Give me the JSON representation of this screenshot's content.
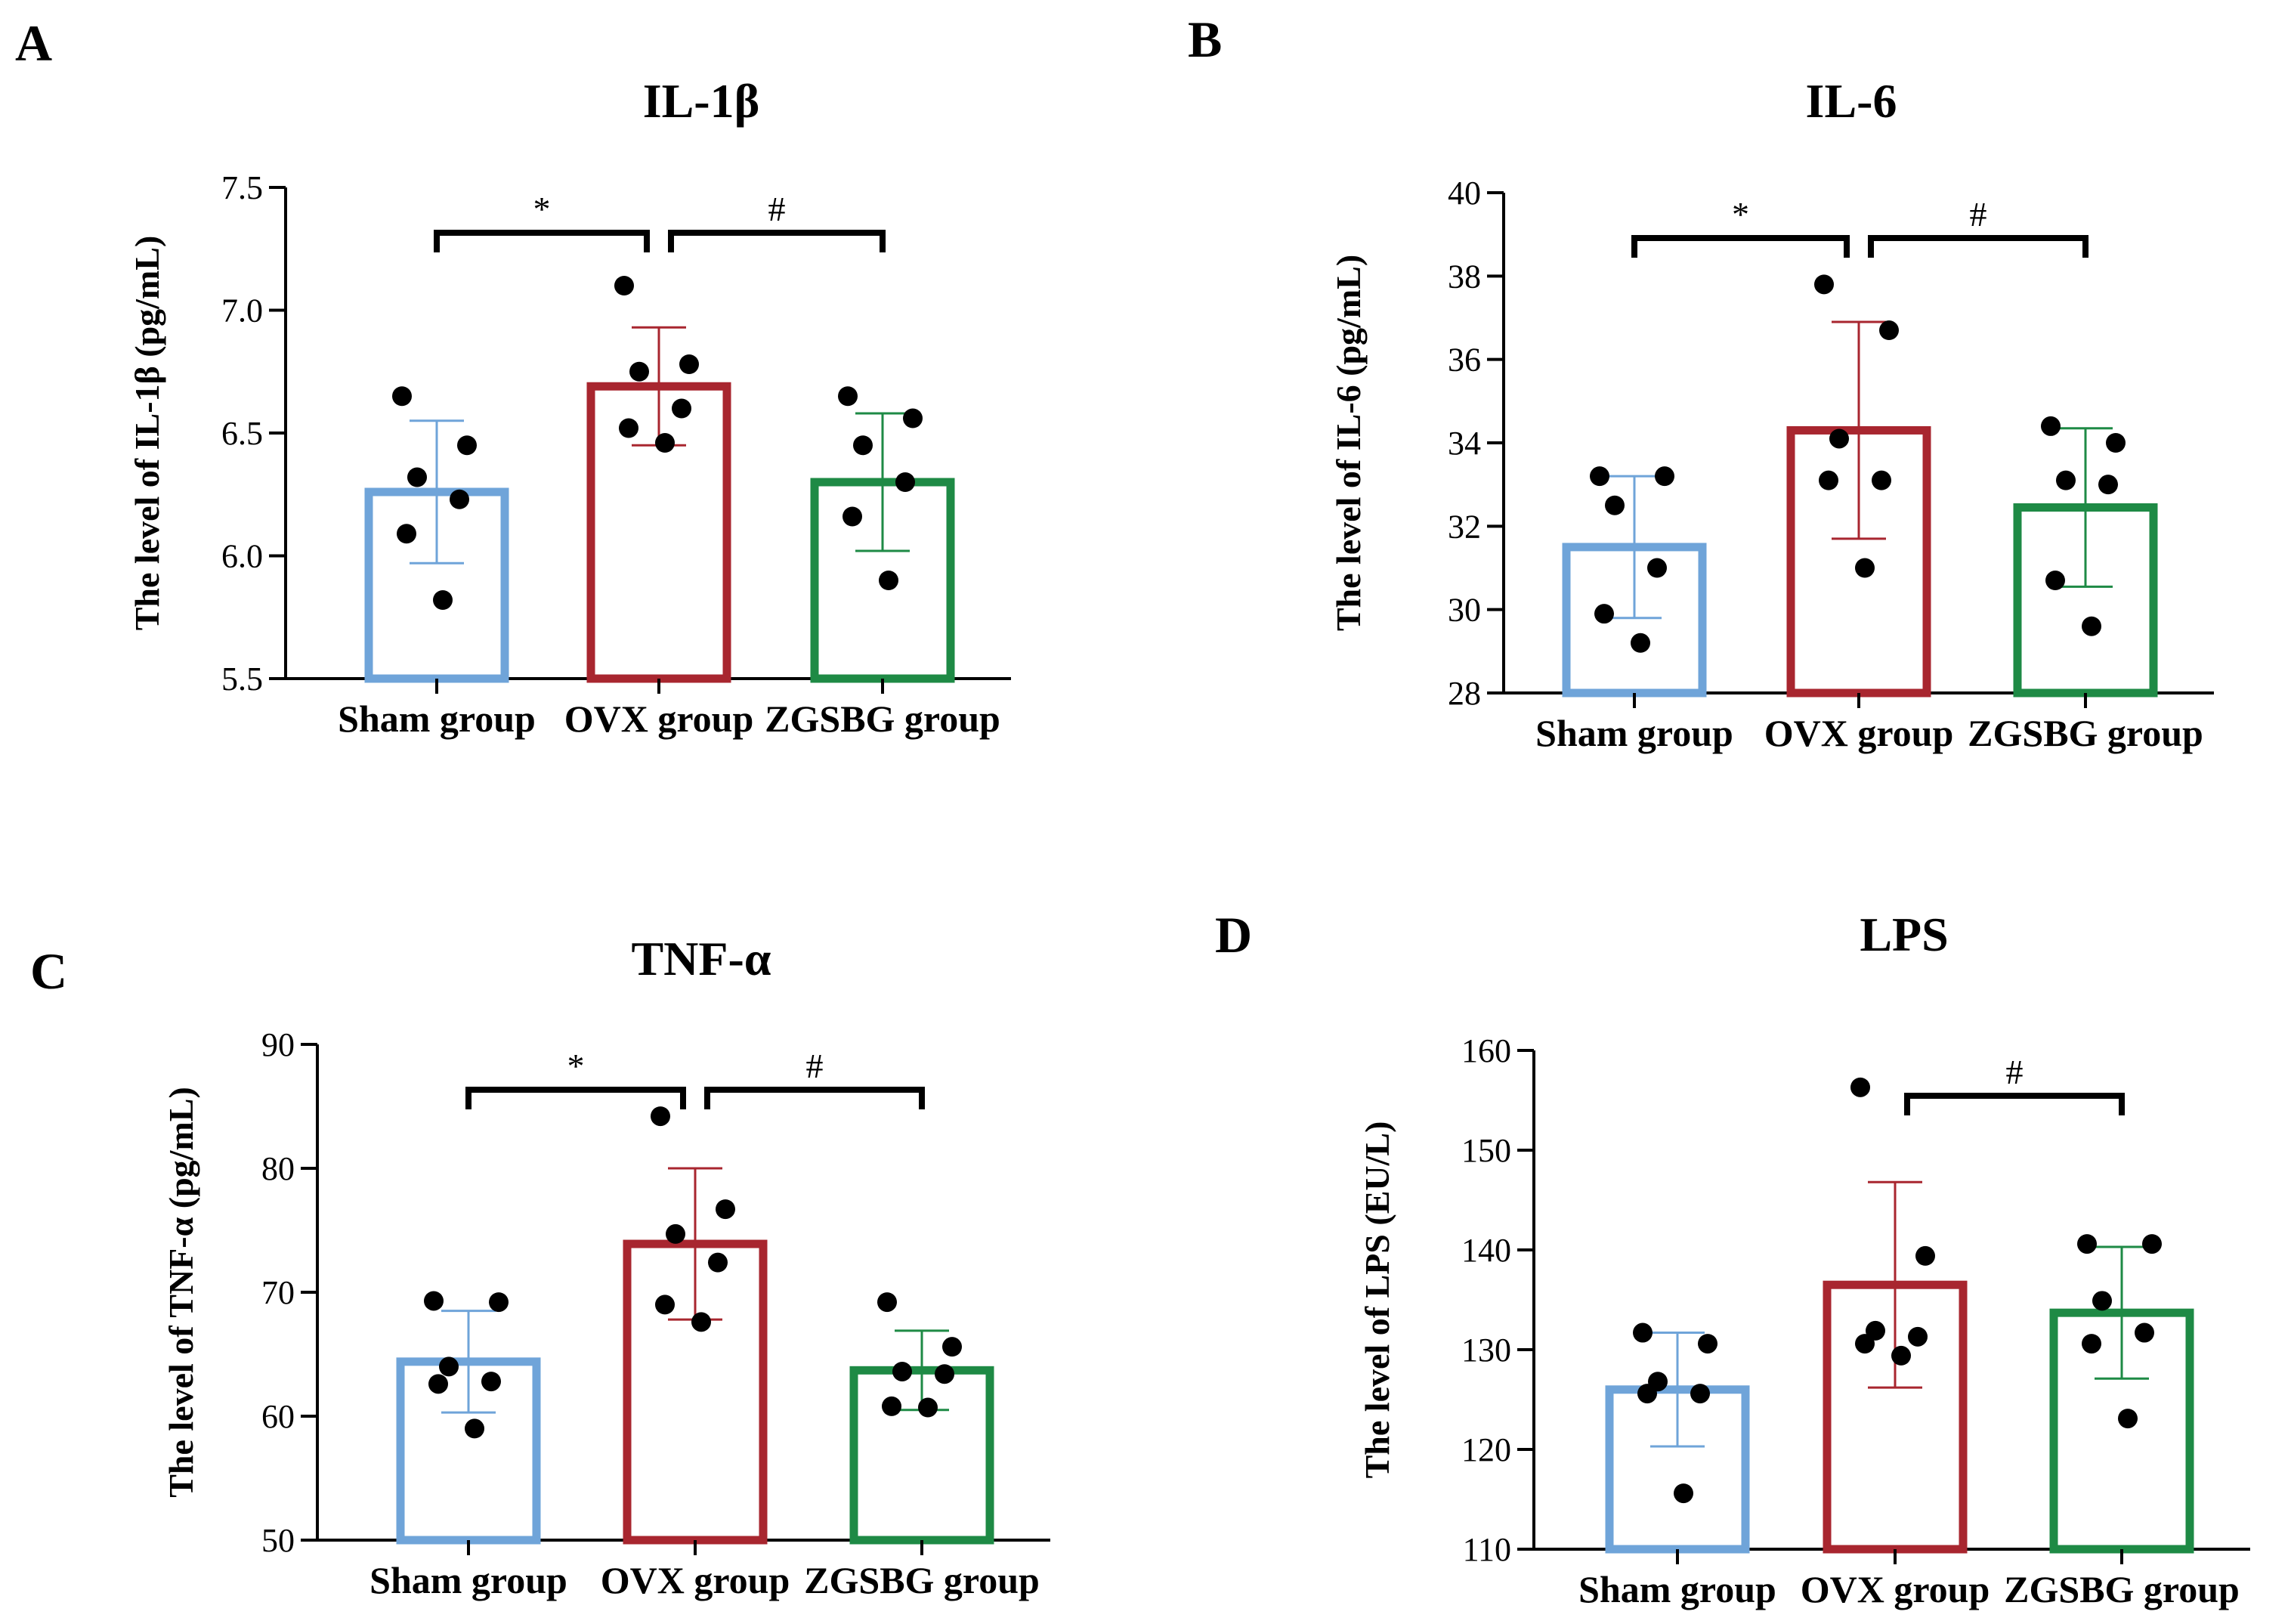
{
  "figure_colors": {
    "sham": "#6FA4D9",
    "ovx": "#A8262F",
    "zgsbg": "#1E8A45",
    "axis": "#000000"
  },
  "chart_data": [
    {
      "panel": "A",
      "type": "bar",
      "title": "IL-1β",
      "ylabel": "The level of IL-1β (pg/mL)",
      "xlabel": "",
      "ylim": [
        5.5,
        7.5
      ],
      "yticks": [
        "5.5",
        "6.0",
        "6.5",
        "7.0",
        "7.5"
      ],
      "categories": [
        "Sham group",
        "OVX group",
        "ZGSBG group"
      ],
      "series": [
        {
          "name": "Sham group",
          "mean": 6.26,
          "sd": 0.29,
          "points": [
            6.65,
            6.45,
            6.32,
            6.23,
            6.09,
            5.82
          ]
        },
        {
          "name": "OVX group",
          "mean": 6.69,
          "sd": 0.24,
          "points": [
            7.1,
            6.78,
            6.75,
            6.6,
            6.52,
            6.46
          ]
        },
        {
          "name": "ZGSBG group",
          "mean": 6.3,
          "sd": 0.28,
          "points": [
            6.65,
            6.56,
            6.45,
            6.3,
            6.16,
            5.9
          ]
        }
      ],
      "significance": [
        {
          "from": 0,
          "to": 1,
          "label": "*"
        },
        {
          "from": 1,
          "to": 2,
          "label": "#"
        }
      ]
    },
    {
      "panel": "B",
      "type": "bar",
      "title": "IL-6",
      "ylabel": "The level of IL-6 (pg/mL)",
      "xlabel": "",
      "ylim": [
        28,
        40
      ],
      "yticks": [
        "28",
        "30",
        "32",
        "34",
        "36",
        "38",
        "40"
      ],
      "categories": [
        "Sham group",
        "OVX group",
        "ZGSBG group"
      ],
      "series": [
        {
          "name": "Sham group",
          "mean": 31.5,
          "sd": 1.7,
          "points": [
            33.2,
            33.2,
            32.5,
            31.0,
            29.9,
            29.2
          ]
        },
        {
          "name": "OVX group",
          "mean": 34.3,
          "sd": 2.6,
          "points": [
            37.8,
            36.7,
            34.1,
            33.1,
            33.1,
            31.0
          ]
        },
        {
          "name": "ZGSBG group",
          "mean": 32.45,
          "sd": 1.9,
          "points": [
            34.4,
            34.0,
            33.1,
            33.0,
            30.7,
            29.6
          ]
        }
      ],
      "significance": [
        {
          "from": 0,
          "to": 1,
          "label": "*"
        },
        {
          "from": 1,
          "to": 2,
          "label": "#"
        }
      ]
    },
    {
      "panel": "C",
      "type": "bar",
      "title": "TNF-α",
      "ylabel": "The level of TNF-α (pg/mL)",
      "xlabel": "",
      "ylim": [
        50,
        90
      ],
      "yticks": [
        "50",
        "60",
        "70",
        "80",
        "90"
      ],
      "categories": [
        "Sham group",
        "OVX group",
        "ZGSBG group"
      ],
      "series": [
        {
          "name": "Sham group",
          "mean": 64.4,
          "sd": 4.1,
          "points": [
            69.3,
            69.2,
            64.0,
            62.8,
            62.6,
            59.0
          ]
        },
        {
          "name": "OVX group",
          "mean": 73.9,
          "sd": 6.1,
          "points": [
            84.2,
            76.7,
            74.7,
            72.4,
            69.0,
            67.6
          ]
        },
        {
          "name": "ZGSBG group",
          "mean": 63.7,
          "sd": 3.2,
          "points": [
            69.2,
            65.6,
            63.6,
            63.4,
            60.8,
            60.7
          ]
        }
      ],
      "significance": [
        {
          "from": 0,
          "to": 1,
          "label": "*"
        },
        {
          "from": 1,
          "to": 2,
          "label": "#"
        }
      ]
    },
    {
      "panel": "D",
      "type": "bar",
      "title": "LPS",
      "ylabel": "The level of LPS (EU/L)",
      "xlabel": "",
      "ylim": [
        110,
        160
      ],
      "yticks": [
        "110",
        "120",
        "130",
        "140",
        "150",
        "160"
      ],
      "categories": [
        "Sham group",
        "OVX group",
        "ZGSBG group"
      ],
      "series": [
        {
          "name": "Sham group",
          "mean": 126.0,
          "sd": 5.7,
          "points": [
            131.7,
            130.6,
            126.8,
            125.6,
            125.6,
            115.6
          ]
        },
        {
          "name": "OVX group",
          "mean": 136.5,
          "sd": 10.3,
          "points": [
            156.3,
            139.4,
            131.9,
            131.3,
            130.6,
            129.4
          ]
        },
        {
          "name": "ZGSBG group",
          "mean": 133.7,
          "sd": 6.6,
          "points": [
            140.6,
            140.6,
            134.9,
            131.7,
            130.6,
            123.1
          ]
        }
      ],
      "significance": [
        {
          "from": 1,
          "to": 2,
          "label": "#"
        }
      ]
    }
  ]
}
